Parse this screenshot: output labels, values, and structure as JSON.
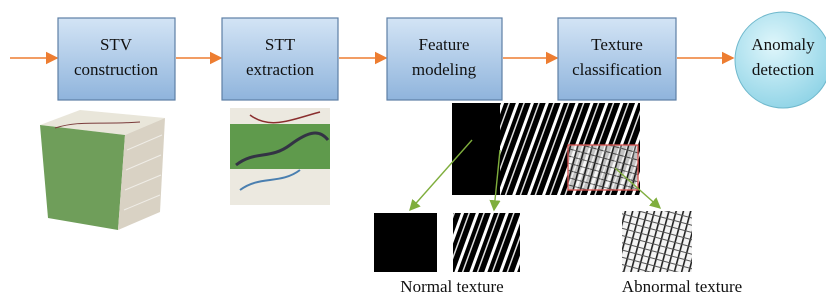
{
  "nodes": [
    {
      "lines": [
        "STV",
        "construction"
      ]
    },
    {
      "lines": [
        "STT",
        "extraction"
      ]
    },
    {
      "lines": [
        "Feature",
        "modeling"
      ]
    },
    {
      "lines": [
        "Texture",
        "classification"
      ]
    },
    {
      "lines": [
        "Anomaly",
        "detection"
      ]
    }
  ],
  "captions": [
    "Normal texture",
    "Abnormal texture"
  ]
}
